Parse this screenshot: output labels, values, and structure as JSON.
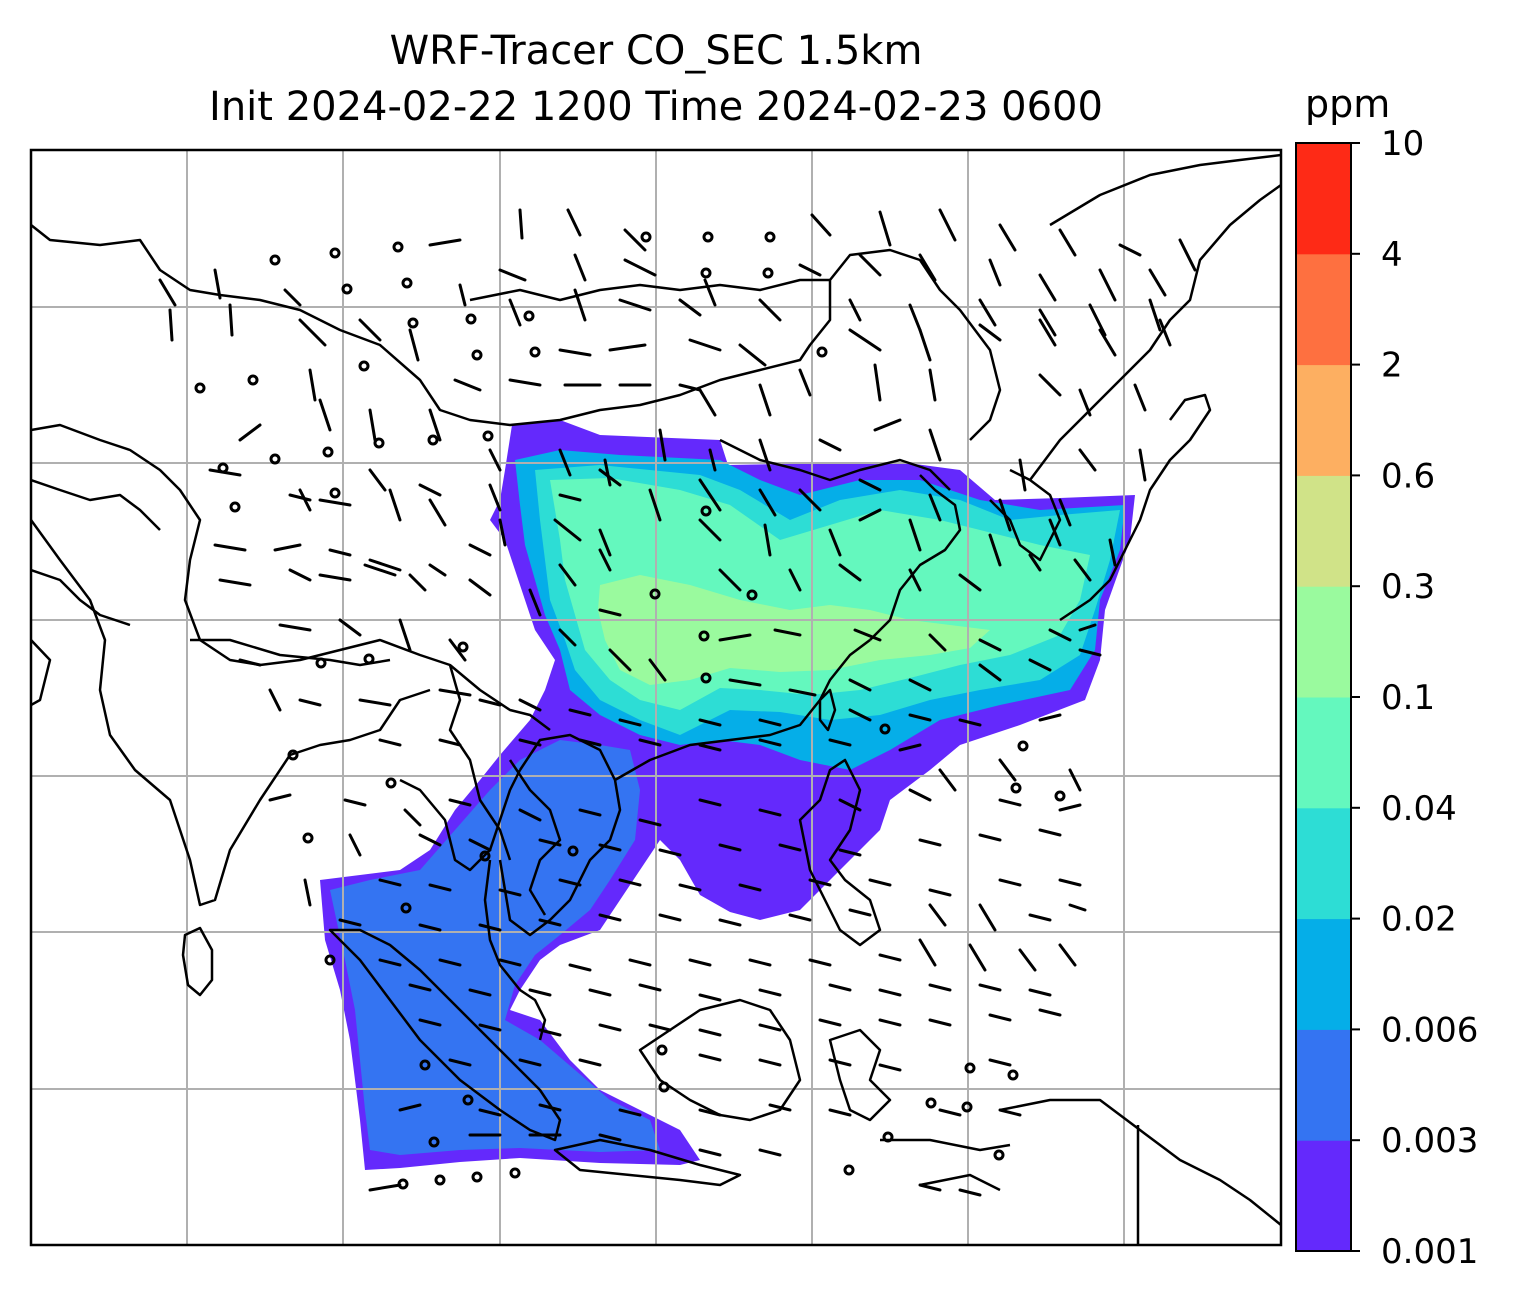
{
  "title": {
    "line1": "WRF-Tracer CO_SEC 1.5km",
    "line2": "Init 2024-02-22 1200 Time 2024-02-23 0600"
  },
  "colorbar": {
    "unit": "ppm",
    "levels": [
      "0.001",
      "0.003",
      "0.006",
      "0.02",
      "0.04",
      "0.1",
      "0.3",
      "0.6",
      "2",
      "4",
      "10"
    ],
    "colors": [
      "#6429fc",
      "#3474f2",
      "#05aee8",
      "#2dddd5",
      "#64f8be",
      "#9afa9e",
      "#d0e388",
      "#fdaf61",
      "#fe7040",
      "#fe2a16"
    ]
  },
  "map": {
    "gridlines": true,
    "gridline_color": "#b0b0b0",
    "coastline_color": "#000000",
    "wind_barb_color": "#000000"
  }
}
